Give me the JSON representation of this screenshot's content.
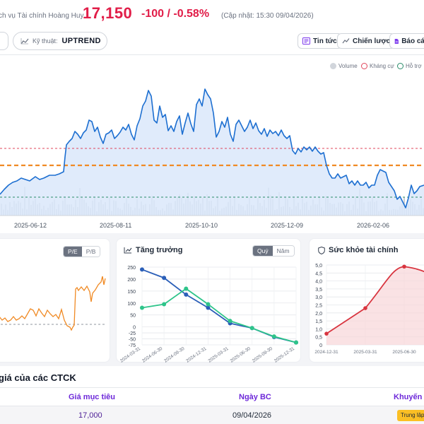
{
  "header": {
    "company_fragment": "ch vụ Tài chính Hoàng Huy",
    "price": "17,150",
    "change": "-100 / -0.58%",
    "updated": "(Cập nhật: 15:30 09/04/2026)"
  },
  "toolbar": {
    "tech_label": "Kỹ thuật:",
    "tech_value": "UPTREND",
    "news_label": "Tin tức",
    "strategy_label": "Chiến lược",
    "report_label": "Báo cá"
  },
  "main_chart": {
    "legend": [
      "Volume",
      "Kháng cự",
      "Hỗ trợ"
    ],
    "x_labels": [
      "2025-06-12",
      "2025-08-11",
      "2025-10-10",
      "2025-12-09",
      "2026-02-06"
    ]
  },
  "valuation_card": {
    "tabs": [
      "P/E",
      "P/B"
    ],
    "active_tab": "P/E"
  },
  "growth_card": {
    "title": "Tăng trưởng",
    "tabs": [
      "Quý",
      "Năm"
    ],
    "active_tab": "Quý"
  },
  "health_card": {
    "title": "Sức khỏe tài chính"
  },
  "colors": {
    "price_down": "#e11d48",
    "price_line": "#1d6fd1",
    "resistance": "#e0455b",
    "support": "#2a8c6a",
    "pivot": "#f08a24"
  },
  "chart_data": [
    {
      "type": "line",
      "title": "",
      "x": [
        "2025-06-12",
        "2025-08-11",
        "2025-10-10",
        "2025-12-09",
        "2026-02-06"
      ],
      "series": [
        {
          "name": "Price",
          "values": [
            115,
            150,
            170,
            145,
            100
          ]
        }
      ],
      "annotations": [
        "Volume",
        "Kháng cự",
        "Hỗ trợ"
      ]
    },
    {
      "type": "line",
      "title": "Tăng trưởng",
      "x": [
        "2024-03-31",
        "2024-06-30",
        "2024-09-30",
        "2024-12-31",
        "2025-03-31",
        "2025-06-30",
        "2025-09-30",
        "2025-12-31"
      ],
      "series": [
        {
          "name": "series-blue",
          "values": [
            240,
            205,
            135,
            80,
            15,
            -5,
            -42,
            -65
          ]
        },
        {
          "name": "series-green",
          "values": [
            80,
            95,
            160,
            95,
            25,
            -5,
            -40,
            -65
          ]
        }
      ],
      "ylim": [
        -75,
        250
      ],
      "yticks": [
        250,
        200,
        150,
        100,
        50,
        0,
        -25,
        -50,
        -75
      ]
    },
    {
      "type": "area",
      "title": "Sức khỏe tài chính",
      "x": [
        "2024-12-31",
        "2025-03-31",
        "2025-06-30"
      ],
      "series": [
        {
          "name": "score",
          "values": [
            0.7,
            2.3,
            4.9
          ]
        }
      ],
      "ylim": [
        0,
        5.0
      ],
      "yticks": [
        "5,0",
        "4,5",
        "4,0",
        "3,5",
        "3,0",
        "2,5",
        "2,0",
        "1,5",
        "1,0",
        "0,5",
        "0"
      ]
    }
  ]
}
